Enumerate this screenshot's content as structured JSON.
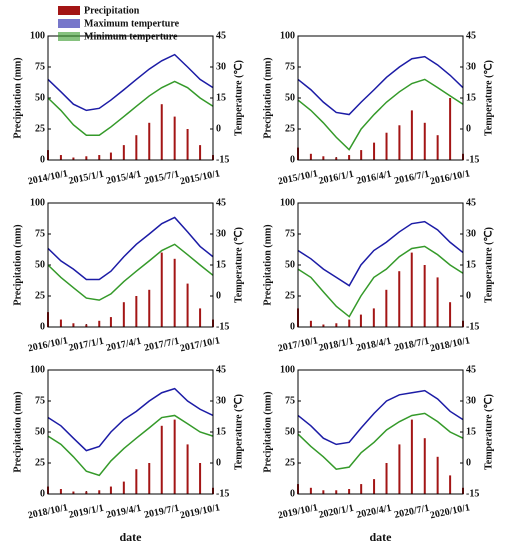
{
  "chart_data": [
    {
      "type": "combo",
      "legend": "top-left",
      "ylabel": "Precipitation (mm)",
      "y2label": "Temperature (℃)",
      "ylim": [
        0,
        100
      ],
      "yticks": [
        0,
        25,
        50,
        75,
        100
      ],
      "y2lim": [
        -15,
        45
      ],
      "y2ticks": [
        -15,
        0,
        15,
        30,
        45
      ],
      "xlim": [
        "2014/10/1",
        "2015/11/1"
      ],
      "xticks": [
        "2014/10/1",
        "2015/1/1",
        "2015/4/1",
        "2015/7/1",
        "2015/10/1"
      ],
      "x": [
        "2014/10/1",
        "2014/11/1",
        "2014/12/1",
        "2015/1/1",
        "2015/2/1",
        "2015/3/1",
        "2015/4/1",
        "2015/5/1",
        "2015/6/1",
        "2015/7/1",
        "2015/8/1",
        "2015/9/1",
        "2015/10/1",
        "2015/11/1"
      ],
      "series": [
        {
          "name": "Precipitation",
          "color": "#a31515",
          "values": [
            8,
            4,
            2,
            3,
            4,
            6,
            12,
            20,
            30,
            45,
            35,
            25,
            12,
            4
          ]
        },
        {
          "name": "Maximum temperture",
          "color": "#1c1ca6",
          "axis": "y2",
          "values": [
            24,
            18,
            12,
            9,
            10,
            14,
            19,
            24,
            29,
            33,
            36,
            30,
            24,
            20
          ]
        },
        {
          "name": "Minimum temperture",
          "color": "#359a2a",
          "axis": "y2",
          "values": [
            15,
            9,
            2,
            -3,
            -3,
            1,
            6,
            11,
            16,
            20,
            23,
            20,
            15,
            11
          ]
        }
      ]
    },
    {
      "type": "combo",
      "ylabel": "Precipitation (mm)",
      "y2label": "Temperature (℃)",
      "ylim": [
        0,
        100
      ],
      "yticks": [
        0,
        25,
        50,
        75,
        100
      ],
      "y2lim": [
        -15,
        45
      ],
      "y2ticks": [
        -15,
        0,
        15,
        30,
        45
      ],
      "xlim": [
        "2015/10/1",
        "2016/11/1"
      ],
      "xticks": [
        "2015/10/1",
        "2016/1/1",
        "2016/4/1",
        "2016/7/1",
        "2016/10/1"
      ],
      "x": [
        "2015/10/1",
        "2015/11/1",
        "2015/12/1",
        "2016/1/1",
        "2016/2/1",
        "2016/3/1",
        "2016/4/1",
        "2016/5/1",
        "2016/6/1",
        "2016/7/1",
        "2016/8/1",
        "2016/9/1",
        "2016/10/1",
        "2016/11/1"
      ],
      "series": [
        {
          "color": "#a31515",
          "values": [
            10,
            5,
            3,
            2,
            4,
            8,
            14,
            22,
            28,
            40,
            30,
            20,
            50,
            5
          ]
        },
        {
          "color": "#1c1ca6",
          "axis": "y2",
          "values": [
            24,
            19,
            13,
            8,
            7,
            13,
            19,
            25,
            30,
            34,
            35,
            31,
            26,
            20
          ]
        },
        {
          "color": "#359a2a",
          "axis": "y2",
          "values": [
            14,
            9,
            3,
            -4,
            -10,
            0,
            7,
            13,
            18,
            22,
            24,
            20,
            16,
            12
          ]
        }
      ]
    },
    {
      "type": "combo",
      "ylabel": "Precipitation (mm)",
      "y2label": "Temperature (℃)",
      "ylim": [
        0,
        100
      ],
      "yticks": [
        0,
        25,
        50,
        75,
        100
      ],
      "y2lim": [
        -15,
        45
      ],
      "y2ticks": [
        -15,
        0,
        15,
        30,
        45
      ],
      "xlim": [
        "2016/10/1",
        "2017/11/1"
      ],
      "xticks": [
        "2016/10/1",
        "2017/1/1",
        "2017/4/1",
        "2017/7/1",
        "2017/10/1"
      ],
      "x": [
        "2016/10/1",
        "2016/11/1",
        "2016/12/1",
        "2017/1/1",
        "2017/2/1",
        "2017/3/1",
        "2017/4/1",
        "2017/5/1",
        "2017/6/1",
        "2017/7/1",
        "2017/8/1",
        "2017/9/1",
        "2017/10/1",
        "2017/11/1"
      ],
      "series": [
        {
          "color": "#a31515",
          "values": [
            12,
            6,
            3,
            2,
            5,
            8,
            20,
            25,
            30,
            60,
            55,
            35,
            15,
            6
          ]
        },
        {
          "color": "#1c1ca6",
          "axis": "y2",
          "values": [
            23,
            17,
            13,
            8,
            8,
            12,
            19,
            25,
            30,
            35,
            38,
            31,
            24,
            19
          ]
        },
        {
          "color": "#359a2a",
          "axis": "y2",
          "values": [
            15,
            9,
            4,
            -1,
            -2,
            1,
            7,
            12,
            17,
            22,
            25,
            20,
            15,
            10
          ]
        }
      ]
    },
    {
      "type": "combo",
      "ylabel": "Precipitation (mm)",
      "y2label": "Temperature (℃)",
      "ylim": [
        0,
        100
      ],
      "yticks": [
        0,
        25,
        50,
        75,
        100
      ],
      "y2lim": [
        -15,
        45
      ],
      "y2ticks": [
        -15,
        0,
        15,
        30,
        45
      ],
      "xlim": [
        "2017/10/1",
        "2018/11/1"
      ],
      "xticks": [
        "2017/10/1",
        "2018/1/1",
        "2018/4/1",
        "2018/7/1",
        "2018/10/1"
      ],
      "x": [
        "2017/10/1",
        "2017/11/1",
        "2017/12/1",
        "2018/1/1",
        "2018/2/1",
        "2018/3/1",
        "2018/4/1",
        "2018/5/1",
        "2018/6/1",
        "2018/7/1",
        "2018/8/1",
        "2018/9/1",
        "2018/10/1",
        "2018/11/1"
      ],
      "series": [
        {
          "color": "#a31515",
          "values": [
            15,
            5,
            2,
            3,
            6,
            10,
            15,
            30,
            45,
            60,
            50,
            40,
            20,
            5
          ]
        },
        {
          "color": "#1c1ca6",
          "axis": "y2",
          "values": [
            22,
            18,
            13,
            9,
            5,
            15,
            22,
            26,
            31,
            35,
            36,
            32,
            26,
            21
          ]
        },
        {
          "color": "#359a2a",
          "axis": "y2",
          "values": [
            13,
            9,
            2,
            -5,
            -10,
            0,
            9,
            13,
            19,
            23,
            24,
            20,
            15,
            11
          ]
        }
      ]
    },
    {
      "type": "combo",
      "ylabel": "Precipitation (mm)",
      "y2label": "Temperature (℃)",
      "xlabel": "date",
      "ylim": [
        0,
        100
      ],
      "yticks": [
        0,
        25,
        50,
        75,
        100
      ],
      "y2lim": [
        -15,
        45
      ],
      "y2ticks": [
        -15,
        0,
        15,
        30,
        45
      ],
      "xlim": [
        "2018/10/1",
        "2019/11/1"
      ],
      "xticks": [
        "2018/10/1",
        "2019/1/1",
        "2019/4/1",
        "2019/7/1",
        "2019/10/1"
      ],
      "x": [
        "2018/10/1",
        "2018/11/1",
        "2018/12/1",
        "2019/1/1",
        "2019/2/1",
        "2019/3/1",
        "2019/4/1",
        "2019/5/1",
        "2019/6/1",
        "2019/7/1",
        "2019/8/1",
        "2019/9/1",
        "2019/10/1",
        "2019/11/1"
      ],
      "series": [
        {
          "color": "#a31515",
          "values": [
            6,
            4,
            2,
            2,
            3,
            6,
            10,
            20,
            25,
            55,
            60,
            40,
            25,
            5
          ]
        },
        {
          "color": "#1c1ca6",
          "axis": "y2",
          "values": [
            22,
            18,
            12,
            6,
            8,
            15,
            21,
            25,
            30,
            34,
            36,
            30,
            26,
            23
          ]
        },
        {
          "color": "#359a2a",
          "axis": "y2",
          "values": [
            13,
            9,
            3,
            -4,
            -6,
            1,
            7,
            12,
            17,
            22,
            23,
            19,
            15,
            13
          ]
        }
      ]
    },
    {
      "type": "combo",
      "ylabel": "Precipitation (mm)",
      "y2label": "Temperature (℃)",
      "xlabel": "date",
      "ylim": [
        0,
        100
      ],
      "yticks": [
        0,
        25,
        50,
        75,
        100
      ],
      "y2lim": [
        -15,
        45
      ],
      "y2ticks": [
        -15,
        0,
        15,
        30,
        45
      ],
      "xlim": [
        "2019/10/1",
        "2020/11/1"
      ],
      "xticks": [
        "2019/10/1",
        "2020/1/1",
        "2020/4/1",
        "2020/7/1",
        "2020/10/1"
      ],
      "x": [
        "2019/10/1",
        "2019/11/1",
        "2019/12/1",
        "2020/1/1",
        "2020/2/1",
        "2020/3/1",
        "2020/4/1",
        "2020/5/1",
        "2020/6/1",
        "2020/7/1",
        "2020/8/1",
        "2020/9/1",
        "2020/10/1",
        "2020/11/1"
      ],
      "series": [
        {
          "color": "#a31515",
          "values": [
            8,
            5,
            3,
            3,
            4,
            8,
            12,
            25,
            40,
            60,
            45,
            30,
            15,
            5
          ]
        },
        {
          "color": "#1c1ca6",
          "axis": "y2",
          "values": [
            23,
            18,
            12,
            9,
            10,
            17,
            24,
            30,
            33,
            34,
            35,
            31,
            25,
            21
          ]
        },
        {
          "color": "#359a2a",
          "axis": "y2",
          "values": [
            14,
            8,
            3,
            -3,
            -2,
            5,
            10,
            16,
            20,
            23,
            24,
            20,
            15,
            12
          ]
        }
      ]
    }
  ]
}
